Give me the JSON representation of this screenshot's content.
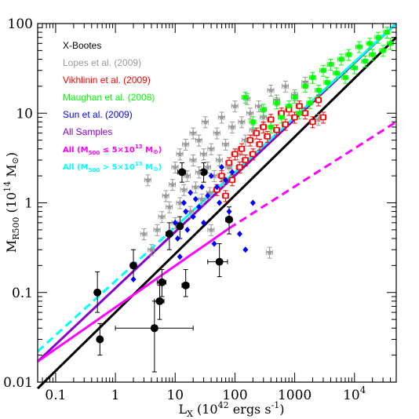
{
  "chart_data": {
    "type": "scatter",
    "scale": {
      "x": "log",
      "y": "log"
    },
    "xlim": [
      0.05,
      50000
    ],
    "ylim": [
      0.01,
      100
    ],
    "x_ticks": [
      {
        "value": 0.1,
        "label": "0.1"
      },
      {
        "value": 1,
        "label": "1"
      },
      {
        "value": 10,
        "label": "10"
      },
      {
        "value": 100,
        "label": "100"
      },
      {
        "value": 1000,
        "label": "1000"
      },
      {
        "value": 10000,
        "label": "10",
        "exponent": "4"
      }
    ],
    "y_ticks": [
      {
        "value": 0.01,
        "label": "0.01"
      },
      {
        "value": 0.1,
        "label": "0.1"
      },
      {
        "value": 1,
        "label": "1"
      },
      {
        "value": 10,
        "label": "10"
      },
      {
        "value": 100,
        "label": "100"
      }
    ],
    "xlabel": {
      "main": "L",
      "sub": "X",
      "rest": " (10",
      "exp": "42",
      "unit": " ergs s",
      "unit_exp": "-1",
      "close": ")"
    },
    "ylabel": {
      "main": "M",
      "sub": "R500",
      "rest": " (10",
      "exp": "14",
      "unit": " M",
      "sun": "⊙",
      "close": ")"
    },
    "legend": [
      {
        "label": "X-Bootes",
        "color": "#000000"
      },
      {
        "label": "Lopes et al. (2009)",
        "color": "#999999"
      },
      {
        "label": "Vikhlinin et al. (2009)",
        "color": "#ff0000"
      },
      {
        "label": "Maughan et al. (2008)",
        "color": "#00ff00"
      },
      {
        "label": "Sun et al. (2009)",
        "color": "#0000ff"
      },
      {
        "label": "All Samples",
        "color": "#8800cc"
      },
      {
        "label_parts": [
          "All (M",
          "500",
          " ≤ 5×10",
          "13",
          " M",
          "⊙",
          ")"
        ],
        "color": "#ff00ff"
      },
      {
        "label_parts": [
          "All (M",
          "500",
          " > 5×10",
          "13",
          " M",
          "⊙",
          ")"
        ],
        "color": "#00ffff"
      }
    ],
    "colors": {
      "xbootes": "#000000",
      "lopes": "#999999",
      "vikhlinin": "#ff0000",
      "maughan": "#00ff00",
      "sun": "#0000ff",
      "all": "#8800cc",
      "low": "#ff00ff",
      "high": "#00ffff"
    },
    "series": [
      {
        "name": "X-Bootes",
        "marker": "filled-circle",
        "color": "#000000",
        "points": [
          {
            "x": 0.5,
            "y": 0.1,
            "xerr": [
              0.45,
              0.55
            ],
            "yerr": [
              0.06,
              0.17
            ]
          },
          {
            "x": 0.55,
            "y": 0.03,
            "xerr": [
              0.5,
              0.6
            ],
            "yerr": [
              0.02,
              0.045
            ]
          },
          {
            "x": 2,
            "y": 0.2,
            "xerr": [
              1.8,
              2.2
            ],
            "yerr": [
              0.14,
              0.3
            ]
          },
          {
            "x": 4.5,
            "y": 0.04,
            "xerr": [
              1,
              20
            ],
            "yerr": [
              0.013,
              0.08
            ]
          },
          {
            "x": 5.5,
            "y": 0.08,
            "xerr": [
              4.5,
              6.5
            ],
            "yerr": [
              0.05,
              0.12
            ]
          },
          {
            "x": 6,
            "y": 0.13,
            "xerr": [
              5,
              7
            ],
            "yerr": [
              0.09,
              0.18
            ]
          },
          {
            "x": 8,
            "y": 0.45,
            "xerr": [
              7,
              9
            ],
            "yerr": [
              0.3,
              0.6
            ]
          },
          {
            "x": 12,
            "y": 0.55,
            "xerr": [
              10.5,
              13.5
            ],
            "yerr": [
              0.4,
              0.7
            ]
          },
          {
            "x": 13,
            "y": 2.2,
            "xerr": [
              11,
              15
            ],
            "yerr": [
              1.7,
              2.8
            ]
          },
          {
            "x": 15,
            "y": 0.12,
            "xerr": [
              13,
              17
            ],
            "yerr": [
              0.09,
              0.18
            ]
          },
          {
            "x": 30,
            "y": 2.2,
            "xerr": [
              26,
              34
            ],
            "yerr": [
              1.7,
              2.8
            ]
          },
          {
            "x": 55,
            "y": 0.22,
            "xerr": [
              35,
              75
            ],
            "yerr": [
              0.15,
              0.35
            ]
          },
          {
            "x": 80,
            "y": 0.65,
            "xerr": [
              70,
              90
            ],
            "yerr": [
              0.45,
              0.9
            ]
          }
        ]
      },
      {
        "name": "Lopes et al. (2009)",
        "marker": "star",
        "color": "#999999",
        "points": [
          {
            "x": 3,
            "y": 0.45
          },
          {
            "x": 3.5,
            "y": 1.8
          },
          {
            "x": 4,
            "y": 0.3
          },
          {
            "x": 5,
            "y": 0.5
          },
          {
            "x": 6,
            "y": 0.7
          },
          {
            "x": 7,
            "y": 1.2
          },
          {
            "x": 8,
            "y": 0.9
          },
          {
            "x": 9,
            "y": 1.6
          },
          {
            "x": 10,
            "y": 2.5
          },
          {
            "x": 10,
            "y": 0.6
          },
          {
            "x": 12,
            "y": 1.0
          },
          {
            "x": 12,
            "y": 3.5
          },
          {
            "x": 14,
            "y": 1.4
          },
          {
            "x": 15,
            "y": 4.5
          },
          {
            "x": 16,
            "y": 2.0
          },
          {
            "x": 18,
            "y": 0.8
          },
          {
            "x": 20,
            "y": 3.0
          },
          {
            "x": 20,
            "y": 6.0
          },
          {
            "x": 22,
            "y": 1.5
          },
          {
            "x": 25,
            "y": 2.2
          },
          {
            "x": 25,
            "y": 5.0
          },
          {
            "x": 28,
            "y": 1.1
          },
          {
            "x": 30,
            "y": 3.5
          },
          {
            "x": 32,
            "y": 8.0
          },
          {
            "x": 35,
            "y": 2.5
          },
          {
            "x": 38,
            "y": 1.3
          },
          {
            "x": 40,
            "y": 4.0
          },
          {
            "x": 40,
            "y": 0.5
          },
          {
            "x": 45,
            "y": 2.0
          },
          {
            "x": 50,
            "y": 6.0
          },
          {
            "x": 55,
            "y": 3.0
          },
          {
            "x": 60,
            "y": 9.0
          },
          {
            "x": 65,
            "y": 1.8
          },
          {
            "x": 70,
            "y": 4.5
          },
          {
            "x": 80,
            "y": 2.5
          },
          {
            "x": 90,
            "y": 7.0
          },
          {
            "x": 100,
            "y": 12
          },
          {
            "x": 110,
            "y": 3.5
          },
          {
            "x": 130,
            "y": 8.0
          },
          {
            "x": 150,
            "y": 5.0
          },
          {
            "x": 160,
            "y": 14.5
          },
          {
            "x": 180,
            "y": 10
          },
          {
            "x": 200,
            "y": 6.5
          },
          {
            "x": 250,
            "y": 12
          },
          {
            "x": 300,
            "y": 9
          },
          {
            "x": 380,
            "y": 0.28
          },
          {
            "x": 400,
            "y": 18
          },
          {
            "x": 500,
            "y": 14
          },
          {
            "x": 700,
            "y": 20
          },
          {
            "x": 1000,
            "y": 16
          },
          {
            "x": 1500,
            "y": 22
          },
          {
            "x": 2500,
            "y": 8.5
          }
        ]
      },
      {
        "name": "Vikhlinin et al. (2009)",
        "marker": "open-square",
        "color": "#ff0000",
        "points": [
          {
            "x": 50,
            "y": 1.4
          },
          {
            "x": 60,
            "y": 2.0
          },
          {
            "x": 70,
            "y": 1.2
          },
          {
            "x": 80,
            "y": 2.8
          },
          {
            "x": 90,
            "y": 1.8
          },
          {
            "x": 100,
            "y": 3.5
          },
          {
            "x": 120,
            "y": 2.5
          },
          {
            "x": 130,
            "y": 4.0
          },
          {
            "x": 150,
            "y": 3.0
          },
          {
            "x": 180,
            "y": 5.0
          },
          {
            "x": 200,
            "y": 3.5
          },
          {
            "x": 230,
            "y": 6.0
          },
          {
            "x": 260,
            "y": 4.5
          },
          {
            "x": 300,
            "y": 7.0
          },
          {
            "x": 350,
            "y": 5.5
          },
          {
            "x": 400,
            "y": 8.5
          },
          {
            "x": 500,
            "y": 6.5
          },
          {
            "x": 600,
            "y": 10
          },
          {
            "x": 700,
            "y": 7.5
          },
          {
            "x": 800,
            "y": 11
          },
          {
            "x": 1000,
            "y": 9
          },
          {
            "x": 1200,
            "y": 12
          },
          {
            "x": 1500,
            "y": 10
          },
          {
            "x": 2000,
            "y": 8
          },
          {
            "x": 2500,
            "y": 14
          },
          {
            "x": 3000,
            "y": 9
          }
        ]
      },
      {
        "name": "Maughan et al. (2008)",
        "marker": "filled-square",
        "color": "#00ff00",
        "points": [
          {
            "x": 150,
            "y": 15
          },
          {
            "x": 200,
            "y": 8
          },
          {
            "x": 300,
            "y": 11
          },
          {
            "x": 400,
            "y": 7
          },
          {
            "x": 500,
            "y": 13
          },
          {
            "x": 600,
            "y": 9
          },
          {
            "x": 800,
            "y": 12
          },
          {
            "x": 1000,
            "y": 15
          },
          {
            "x": 1200,
            "y": 10
          },
          {
            "x": 1500,
            "y": 20
          },
          {
            "x": 1800,
            "y": 13
          },
          {
            "x": 2000,
            "y": 25
          },
          {
            "x": 2500,
            "y": 18
          },
          {
            "x": 3000,
            "y": 30
          },
          {
            "x": 3500,
            "y": 22
          },
          {
            "x": 4000,
            "y": 35
          },
          {
            "x": 5000,
            "y": 28
          },
          {
            "x": 6000,
            "y": 40
          },
          {
            "x": 7000,
            "y": 25
          },
          {
            "x": 8000,
            "y": 45
          },
          {
            "x": 10000,
            "y": 32
          },
          {
            "x": 12000,
            "y": 55
          },
          {
            "x": 15000,
            "y": 38
          },
          {
            "x": 18000,
            "y": 60
          },
          {
            "x": 20000,
            "y": 45
          },
          {
            "x": 25000,
            "y": 70
          },
          {
            "x": 30000,
            "y": 50
          },
          {
            "x": 35000,
            "y": 80
          },
          {
            "x": 40000,
            "y": 60
          }
        ]
      },
      {
        "name": "Sun et al. (2009)",
        "marker": "filled-diamond",
        "color": "#0000ff",
        "points": [
          {
            "x": 2,
            "y": 0.14
          },
          {
            "x": 10,
            "y": 0.6
          },
          {
            "x": 11,
            "y": 0.4
          },
          {
            "x": 12,
            "y": 0.25
          },
          {
            "x": 14,
            "y": 1.0
          },
          {
            "x": 15,
            "y": 0.8
          },
          {
            "x": 16,
            "y": 0.5
          },
          {
            "x": 18,
            "y": 1.3
          },
          {
            "x": 20,
            "y": 0.7
          },
          {
            "x": 22,
            "y": 1.1
          },
          {
            "x": 25,
            "y": 0.9
          },
          {
            "x": 28,
            "y": 1.5
          },
          {
            "x": 30,
            "y": 0.6
          },
          {
            "x": 35,
            "y": 1.2
          },
          {
            "x": 40,
            "y": 2.0
          },
          {
            "x": 45,
            "y": 0.35
          },
          {
            "x": 50,
            "y": 1.5
          },
          {
            "x": 55,
            "y": 1.0
          },
          {
            "x": 60,
            "y": 2.5
          },
          {
            "x": 70,
            "y": 1.8
          },
          {
            "x": 80,
            "y": 0.8
          },
          {
            "x": 90,
            "y": 2.2
          },
          {
            "x": 120,
            "y": 0.45
          },
          {
            "x": 150,
            "y": 0.3
          },
          {
            "x": 200,
            "y": 1.0
          }
        ]
      }
    ],
    "fits": [
      {
        "name": "X-Bootes",
        "color": "#000000",
        "style": "solid",
        "x": [
          0.05,
          50000
        ],
        "y": [
          0.0085,
          70
        ]
      },
      {
        "name": "All Samples",
        "color": "#8800cc",
        "style": "solid",
        "x": [
          0.05,
          50000
        ],
        "y": [
          0.017,
          100
        ]
      },
      {
        "name": "All (M500 ≤ 5×10^13 M⊙)",
        "color": "#ff00ff",
        "style": "solid",
        "x": [
          0.05,
          80
        ],
        "y": [
          0.017,
          0.52
        ]
      },
      {
        "name": "All (M500 ≤ 5×10^13 M⊙)",
        "color": "#ff00ff",
        "style": "dashed",
        "x": [
          80,
          50000
        ],
        "y": [
          0.52,
          8
        ]
      },
      {
        "name": "All (M500 > 5×10^13 M⊙)",
        "color": "#00ffff",
        "style": "dashed",
        "x": [
          0.05,
          12
        ],
        "y": [
          0.022,
          0.6
        ]
      },
      {
        "name": "All (M500 > 5×10^13 M⊙)",
        "color": "#00ffff",
        "style": "solid",
        "x": [
          12,
          50000
        ],
        "y": [
          0.6,
          100
        ]
      }
    ]
  }
}
